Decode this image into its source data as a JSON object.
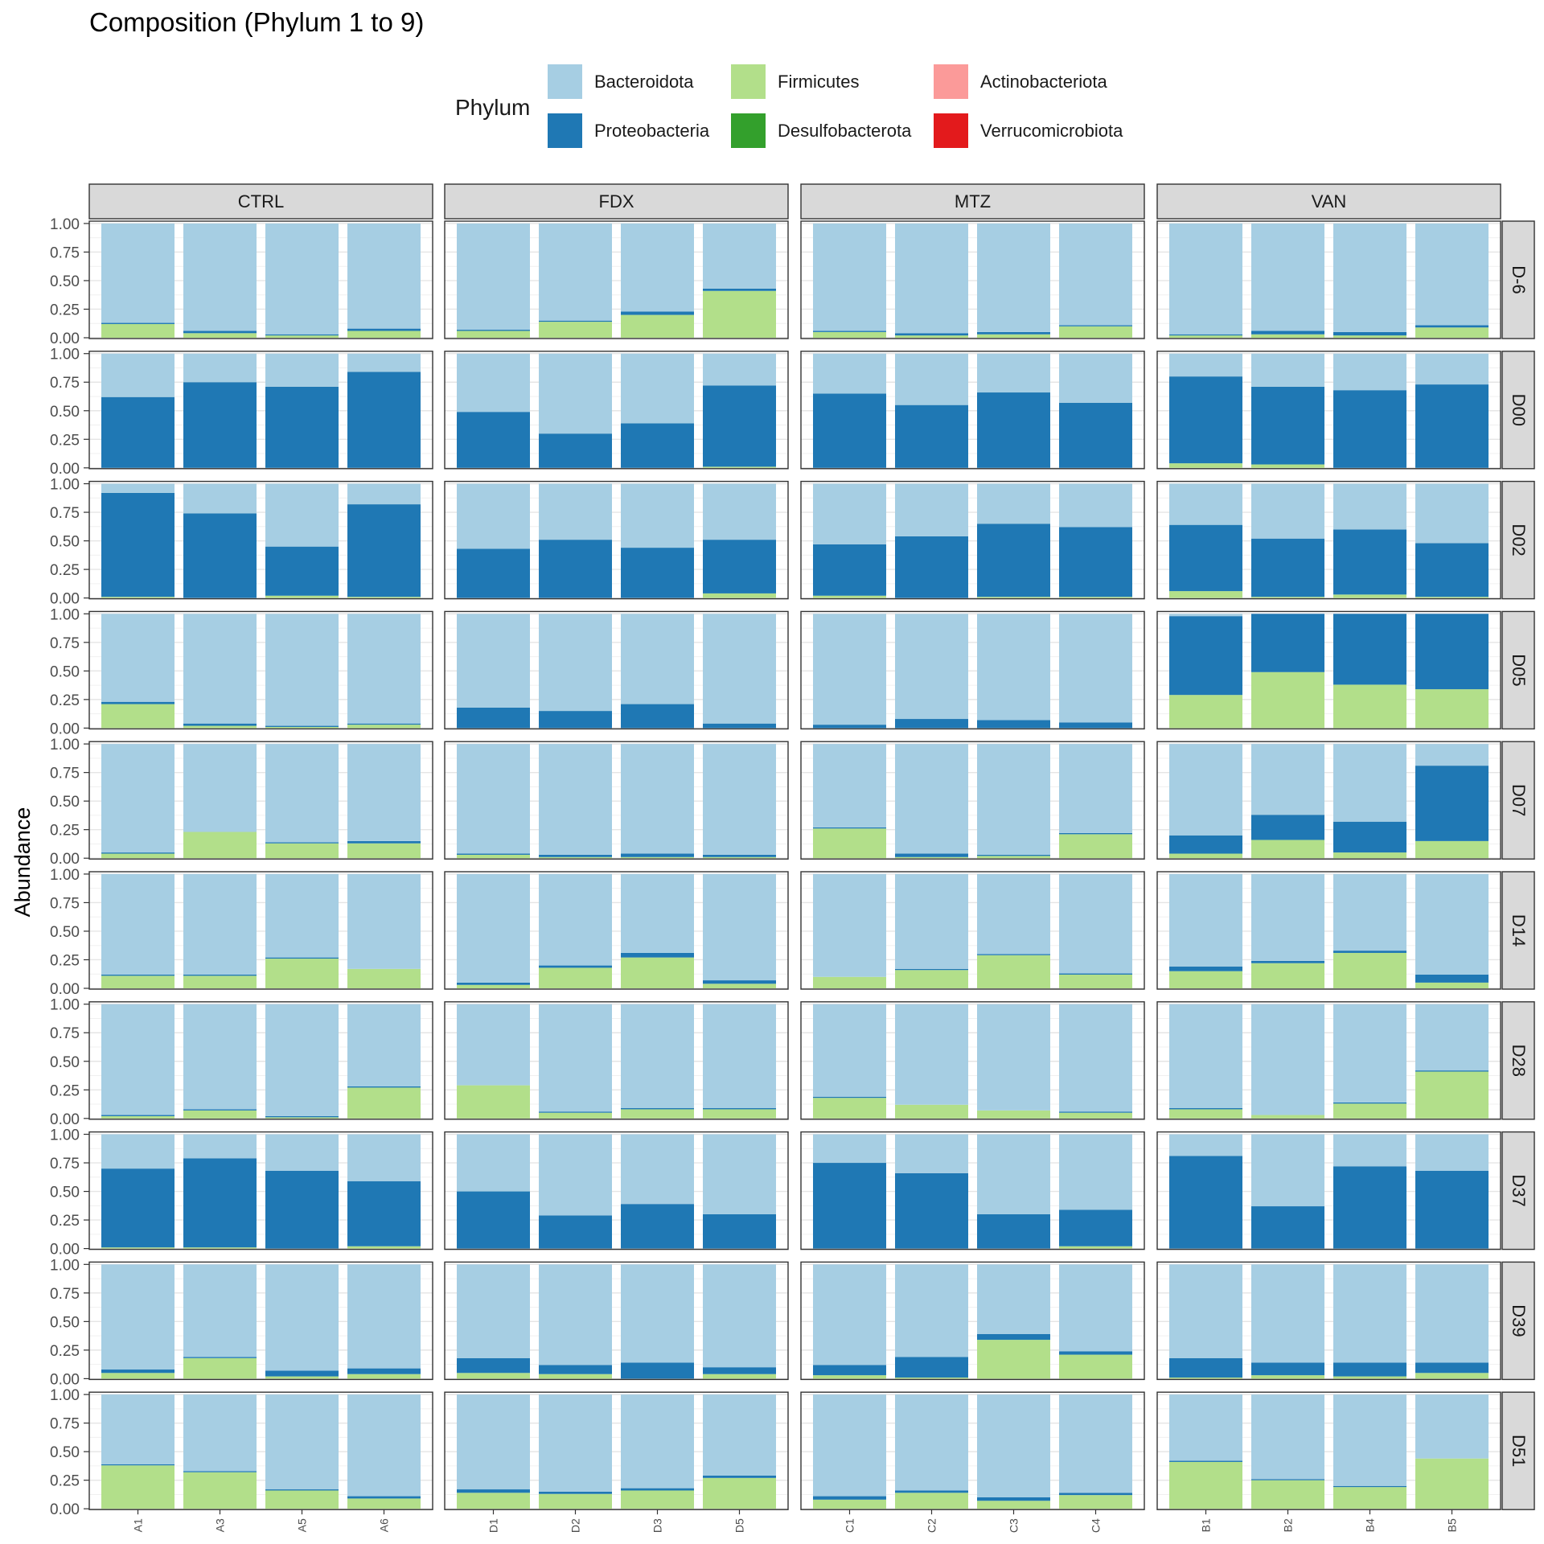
{
  "chart_data": {
    "type": "bar",
    "title": "Composition (Phylum 1 to 9)",
    "ylabel": "Abundance",
    "xlabel": "",
    "ylim": [
      0,
      1
    ],
    "yticks": [
      "0.00",
      "0.25",
      "0.50",
      "0.75",
      "1.00"
    ],
    "legend": {
      "title": "Phylum",
      "placement": "top",
      "entries": [
        {
          "name": "Bacteroidota",
          "color": "#a6cee3"
        },
        {
          "name": "Proteobacteria",
          "color": "#1f78b4"
        },
        {
          "name": "Firmicutes",
          "color": "#b2df8a"
        },
        {
          "name": "Desulfobacterota",
          "color": "#33a02c"
        },
        {
          "name": "Actinobacteriota",
          "color": "#fb9a99"
        },
        {
          "name": "Verrucomicrobiota",
          "color": "#e31a1c"
        }
      ]
    },
    "stack_order": [
      "Firmicutes",
      "Proteobacteria",
      "Bacteroidota"
    ],
    "groups": [
      {
        "name": "CTRL",
        "samples": [
          "A1",
          "A3",
          "A5",
          "A6"
        ]
      },
      {
        "name": "FDX",
        "samples": [
          "D1",
          "D2",
          "D3",
          "D5"
        ]
      },
      {
        "name": "MTZ",
        "samples": [
          "C1",
          "C2",
          "C3",
          "C4"
        ]
      },
      {
        "name": "VAN",
        "samples": [
          "B1",
          "B2",
          "B4",
          "B5"
        ]
      }
    ],
    "days": [
      "D-6",
      "D00",
      "D02",
      "D05",
      "D07",
      "D14",
      "D28",
      "D37",
      "D39",
      "D51"
    ],
    "data": {
      "D-6": {
        "CTRL": [
          {
            "F": 0.12,
            "P": 0.01
          },
          {
            "F": 0.04,
            "P": 0.02
          },
          {
            "F": 0.02,
            "P": 0.01
          },
          {
            "F": 0.06,
            "P": 0.02
          }
        ],
        "FDX": [
          {
            "F": 0.06,
            "P": 0.01
          },
          {
            "F": 0.14,
            "P": 0.01
          },
          {
            "F": 0.2,
            "P": 0.03
          },
          {
            "F": 0.41,
            "P": 0.02
          }
        ],
        "MTZ": [
          {
            "F": 0.05,
            "P": 0.01
          },
          {
            "F": 0.02,
            "P": 0.02
          },
          {
            "F": 0.03,
            "P": 0.02
          },
          {
            "F": 0.1,
            "P": 0.01
          }
        ],
        "VAN": [
          {
            "F": 0.02,
            "P": 0.01
          },
          {
            "F": 0.03,
            "P": 0.03
          },
          {
            "F": 0.02,
            "P": 0.03
          },
          {
            "F": 0.09,
            "P": 0.02
          }
        ]
      },
      "D00": {
        "CTRL": [
          {
            "F": 0.0,
            "P": 0.62
          },
          {
            "F": 0.0,
            "P": 0.75
          },
          {
            "F": 0.0,
            "P": 0.71
          },
          {
            "F": 0.0,
            "P": 0.84
          }
        ],
        "FDX": [
          {
            "F": 0.0,
            "P": 0.49
          },
          {
            "F": 0.0,
            "P": 0.3
          },
          {
            "F": 0.0,
            "P": 0.39
          },
          {
            "F": 0.01,
            "P": 0.71
          }
        ],
        "MTZ": [
          {
            "F": 0.0,
            "P": 0.65
          },
          {
            "F": 0.0,
            "P": 0.55
          },
          {
            "F": 0.0,
            "P": 0.66
          },
          {
            "F": 0.0,
            "P": 0.57
          }
        ],
        "VAN": [
          {
            "F": 0.04,
            "P": 0.76
          },
          {
            "F": 0.03,
            "P": 0.68
          },
          {
            "F": 0.0,
            "P": 0.68
          },
          {
            "F": 0.0,
            "P": 0.73
          }
        ]
      },
      "D02": {
        "CTRL": [
          {
            "F": 0.01,
            "P": 0.91
          },
          {
            "F": 0.0,
            "P": 0.74
          },
          {
            "F": 0.02,
            "P": 0.43
          },
          {
            "F": 0.01,
            "P": 0.81
          }
        ],
        "FDX": [
          {
            "F": 0.0,
            "P": 0.43
          },
          {
            "F": 0.0,
            "P": 0.51
          },
          {
            "F": 0.0,
            "P": 0.44
          },
          {
            "F": 0.04,
            "P": 0.47
          }
        ],
        "MTZ": [
          {
            "F": 0.02,
            "P": 0.45
          },
          {
            "F": 0.0,
            "P": 0.54
          },
          {
            "F": 0.01,
            "P": 0.64
          },
          {
            "F": 0.01,
            "P": 0.61
          }
        ],
        "VAN": [
          {
            "F": 0.06,
            "P": 0.58
          },
          {
            "F": 0.01,
            "P": 0.51
          },
          {
            "F": 0.03,
            "P": 0.57
          },
          {
            "F": 0.01,
            "P": 0.47
          }
        ]
      },
      "D05": {
        "CTRL": [
          {
            "F": 0.21,
            "P": 0.02
          },
          {
            "F": 0.02,
            "P": 0.02
          },
          {
            "F": 0.01,
            "P": 0.01
          },
          {
            "F": 0.03,
            "P": 0.01
          }
        ],
        "FDX": [
          {
            "F": 0.0,
            "P": 0.18
          },
          {
            "F": 0.0,
            "P": 0.15
          },
          {
            "F": 0.0,
            "P": 0.21
          },
          {
            "F": 0.0,
            "P": 0.04
          }
        ],
        "MTZ": [
          {
            "F": 0.0,
            "P": 0.03
          },
          {
            "F": 0.0,
            "P": 0.08
          },
          {
            "F": 0.0,
            "P": 0.07
          },
          {
            "F": 0.0,
            "P": 0.05
          }
        ],
        "VAN": [
          {
            "F": 0.29,
            "P": 0.69
          },
          {
            "F": 0.49,
            "P": 0.51
          },
          {
            "F": 0.38,
            "P": 0.62
          },
          {
            "F": 0.34,
            "P": 0.66
          }
        ]
      },
      "D07": {
        "CTRL": [
          {
            "F": 0.04,
            "P": 0.01
          },
          {
            "F": 0.23,
            "P": 0.0
          },
          {
            "F": 0.13,
            "P": 0.01
          },
          {
            "F": 0.13,
            "P": 0.02
          }
        ],
        "FDX": [
          {
            "F": 0.03,
            "P": 0.01
          },
          {
            "F": 0.01,
            "P": 0.02
          },
          {
            "F": 0.01,
            "P": 0.03
          },
          {
            "F": 0.01,
            "P": 0.02
          }
        ],
        "MTZ": [
          {
            "F": 0.26,
            "P": 0.01
          },
          {
            "F": 0.01,
            "P": 0.03
          },
          {
            "F": 0.02,
            "P": 0.01
          },
          {
            "F": 0.21,
            "P": 0.01
          }
        ],
        "VAN": [
          {
            "F": 0.04,
            "P": 0.16
          },
          {
            "F": 0.16,
            "P": 0.22
          },
          {
            "F": 0.05,
            "P": 0.27
          },
          {
            "F": 0.15,
            "P": 0.66
          }
        ]
      },
      "D14": {
        "CTRL": [
          {
            "F": 0.11,
            "P": 0.01
          },
          {
            "F": 0.11,
            "P": 0.01
          },
          {
            "F": 0.26,
            "P": 0.01
          },
          {
            "F": 0.17,
            "P": 0.0
          }
        ],
        "FDX": [
          {
            "F": 0.03,
            "P": 0.02
          },
          {
            "F": 0.18,
            "P": 0.02
          },
          {
            "F": 0.27,
            "P": 0.04
          },
          {
            "F": 0.04,
            "P": 0.03
          }
        ],
        "MTZ": [
          {
            "F": 0.1,
            "P": 0.0
          },
          {
            "F": 0.16,
            "P": 0.01
          },
          {
            "F": 0.29,
            "P": 0.01
          },
          {
            "F": 0.12,
            "P": 0.01
          }
        ],
        "VAN": [
          {
            "F": 0.15,
            "P": 0.04
          },
          {
            "F": 0.22,
            "P": 0.02
          },
          {
            "F": 0.31,
            "P": 0.02
          },
          {
            "F": 0.05,
            "P": 0.07
          }
        ]
      },
      "D28": {
        "CTRL": [
          {
            "F": 0.02,
            "P": 0.01
          },
          {
            "F": 0.07,
            "P": 0.01
          },
          {
            "F": 0.01,
            "P": 0.01
          },
          {
            "F": 0.27,
            "P": 0.01
          }
        ],
        "FDX": [
          {
            "F": 0.29,
            "P": 0.0
          },
          {
            "F": 0.05,
            "P": 0.01
          },
          {
            "F": 0.08,
            "P": 0.01
          },
          {
            "F": 0.08,
            "P": 0.01
          }
        ],
        "MTZ": [
          {
            "F": 0.18,
            "P": 0.01
          },
          {
            "F": 0.12,
            "P": 0.0
          },
          {
            "F": 0.07,
            "P": 0.0
          },
          {
            "F": 0.05,
            "P": 0.01
          }
        ],
        "VAN": [
          {
            "F": 0.08,
            "P": 0.01
          },
          {
            "F": 0.03,
            "P": 0.0
          },
          {
            "F": 0.13,
            "P": 0.01
          },
          {
            "F": 0.41,
            "P": 0.01
          }
        ]
      },
      "D37": {
        "CTRL": [
          {
            "F": 0.01,
            "P": 0.69
          },
          {
            "F": 0.01,
            "P": 0.78
          },
          {
            "F": 0.0,
            "P": 0.68
          },
          {
            "F": 0.02,
            "P": 0.57
          }
        ],
        "FDX": [
          {
            "F": 0.0,
            "P": 0.5
          },
          {
            "F": 0.0,
            "P": 0.29
          },
          {
            "F": 0.0,
            "P": 0.39
          },
          {
            "F": 0.0,
            "P": 0.3
          }
        ],
        "MTZ": [
          {
            "F": 0.0,
            "P": 0.75
          },
          {
            "F": 0.0,
            "P": 0.66
          },
          {
            "F": 0.0,
            "P": 0.3
          },
          {
            "F": 0.02,
            "P": 0.32
          }
        ],
        "VAN": [
          {
            "F": 0.0,
            "P": 0.81
          },
          {
            "F": 0.0,
            "P": 0.37
          },
          {
            "F": 0.0,
            "P": 0.72
          },
          {
            "F": 0.0,
            "P": 0.68
          }
        ]
      },
      "D39": {
        "CTRL": [
          {
            "F": 0.05,
            "P": 0.03
          },
          {
            "F": 0.18,
            "P": 0.01
          },
          {
            "F": 0.02,
            "P": 0.05
          },
          {
            "F": 0.04,
            "P": 0.05
          }
        ],
        "FDX": [
          {
            "F": 0.05,
            "P": 0.13
          },
          {
            "F": 0.04,
            "P": 0.08
          },
          {
            "F": 0.0,
            "P": 0.14
          },
          {
            "F": 0.04,
            "P": 0.06
          }
        ],
        "MTZ": [
          {
            "F": 0.03,
            "P": 0.09
          },
          {
            "F": 0.01,
            "P": 0.18
          },
          {
            "F": 0.34,
            "P": 0.05
          },
          {
            "F": 0.21,
            "P": 0.03
          }
        ],
        "VAN": [
          {
            "F": 0.01,
            "P": 0.17
          },
          {
            "F": 0.03,
            "P": 0.11
          },
          {
            "F": 0.02,
            "P": 0.12
          },
          {
            "F": 0.05,
            "P": 0.09
          }
        ]
      },
      "D51": {
        "CTRL": [
          {
            "F": 0.38,
            "P": 0.01
          },
          {
            "F": 0.32,
            "P": 0.01
          },
          {
            "F": 0.16,
            "P": 0.01
          },
          {
            "F": 0.09,
            "P": 0.02
          }
        ],
        "FDX": [
          {
            "F": 0.14,
            "P": 0.03
          },
          {
            "F": 0.13,
            "P": 0.02
          },
          {
            "F": 0.16,
            "P": 0.02
          },
          {
            "F": 0.27,
            "P": 0.02
          }
        ],
        "MTZ": [
          {
            "F": 0.08,
            "P": 0.03
          },
          {
            "F": 0.14,
            "P": 0.02
          },
          {
            "F": 0.07,
            "P": 0.03
          },
          {
            "F": 0.12,
            "P": 0.02
          }
        ],
        "VAN": [
          {
            "F": 0.41,
            "P": 0.01
          },
          {
            "F": 0.25,
            "P": 0.01
          },
          {
            "F": 0.19,
            "P": 0.01
          },
          {
            "F": 0.44,
            "P": 0.0
          }
        ]
      }
    }
  }
}
